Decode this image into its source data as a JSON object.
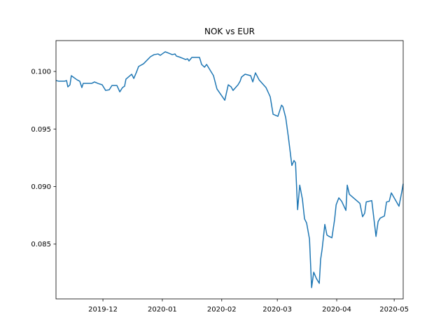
{
  "chart_data": {
    "type": "line",
    "title": "NOK vs EUR",
    "x": [
      5.5,
      7.0,
      9.9,
      11.0,
      11.7,
      12.8,
      13.5,
      16.5,
      17.9,
      19.0,
      19.7,
      21.9,
      24.1,
      25.6,
      27.4,
      29.6,
      31.4,
      33.3,
      34.7,
      37.3,
      38.8,
      40.2,
      41.3,
      42.0,
      45.0,
      46.1,
      47.5,
      48.6,
      51.2,
      54.8,
      56.7,
      58.8,
      59.9,
      62.5,
      64.3,
      66.2,
      67.6,
      68.3,
      70.5,
      73.1,
      74.2,
      74.9,
      76.4,
      80.4,
      81.5,
      83.0,
      84.1,
      87.7,
      89.5,
      93.6,
      95.4,
      96.9,
      97.9,
      100.5,
      101.6,
      102.3,
      104.2,
      107.1,
      108.2,
      109.6,
      111.5,
      115.1,
      117.3,
      118.8,
      121.3,
      123.2,
      123.9,
      125.4,
      126.8,
      128.6,
      129.7,
      130.5,
      131.6,
      132.7,
      134.1,
      135.2,
      136.3,
      137.8,
      138.9,
      140.0,
      141.4,
      142.9,
      143.6,
      144.4,
      145.8,
      146.9,
      148.0,
      149.5,
      150.9,
      151.7,
      153.1,
      154.6,
      156.8,
      157.5,
      158.6,
      164.1,
      165.5,
      166.6,
      167.4,
      170.3,
      172.5,
      173.6,
      174.7,
      176.9,
      178.0,
      179.4,
      180.5,
      184.5,
      186.0,
      186.7
    ],
    "values": [
      0.09921,
      0.09915,
      0.09915,
      0.09921,
      0.09866,
      0.09884,
      0.09963,
      0.09927,
      0.09915,
      0.0986,
      0.09896,
      0.09896,
      0.09896,
      0.09909,
      0.09896,
      0.09884,
      0.09835,
      0.09841,
      0.09878,
      0.09878,
      0.09823,
      0.0986,
      0.09872,
      0.09933,
      0.09976,
      0.09939,
      0.09994,
      0.10043,
      0.10067,
      0.10128,
      0.10146,
      0.10152,
      0.1014,
      0.10171,
      0.10159,
      0.10146,
      0.10152,
      0.10134,
      0.10122,
      0.10104,
      0.1011,
      0.10091,
      0.10122,
      0.10122,
      0.10061,
      0.10037,
      0.10061,
      0.09963,
      0.09848,
      0.0975,
      0.09884,
      0.09866,
      0.09835,
      0.09884,
      0.09915,
      0.09951,
      0.09976,
      0.09963,
      0.09909,
      0.09988,
      0.09927,
      0.0986,
      0.0978,
      0.09628,
      0.0961,
      0.09707,
      0.09695,
      0.09598,
      0.09427,
      0.09183,
      0.09226,
      0.09207,
      0.08799,
      0.09012,
      0.0889,
      0.0872,
      0.08683,
      0.08543,
      0.08122,
      0.08256,
      0.08201,
      0.08159,
      0.08366,
      0.08457,
      0.08671,
      0.08579,
      0.08567,
      0.08555,
      0.08713,
      0.08841,
      0.08902,
      0.08872,
      0.08793,
      0.09012,
      0.08933,
      0.08854,
      0.08738,
      0.08768,
      0.08866,
      0.08878,
      0.08567,
      0.08695,
      0.08726,
      0.08744,
      0.08866,
      0.08872,
      0.08945,
      0.08829,
      0.08957,
      0.09024
    ],
    "color": "#1f77b4",
    "xlim": [
      5.5,
      186.7
    ],
    "xticks": [
      {
        "value": 30,
        "label": "2019-12"
      },
      {
        "value": 61,
        "label": "2020-01"
      },
      {
        "value": 92,
        "label": "2020-02"
      },
      {
        "value": 121,
        "label": "2020-03"
      },
      {
        "value": 152,
        "label": "2020-04"
      },
      {
        "value": 182,
        "label": "2020-05"
      }
    ],
    "ylim": [
      0.08024,
      0.10268
    ],
    "yticks": [
      0.085,
      {
        "value": 0.09,
        "label": "0.090"
      },
      0.095,
      {
        "value": 0.1,
        "label": "0.100"
      }
    ],
    "grid": false
  }
}
